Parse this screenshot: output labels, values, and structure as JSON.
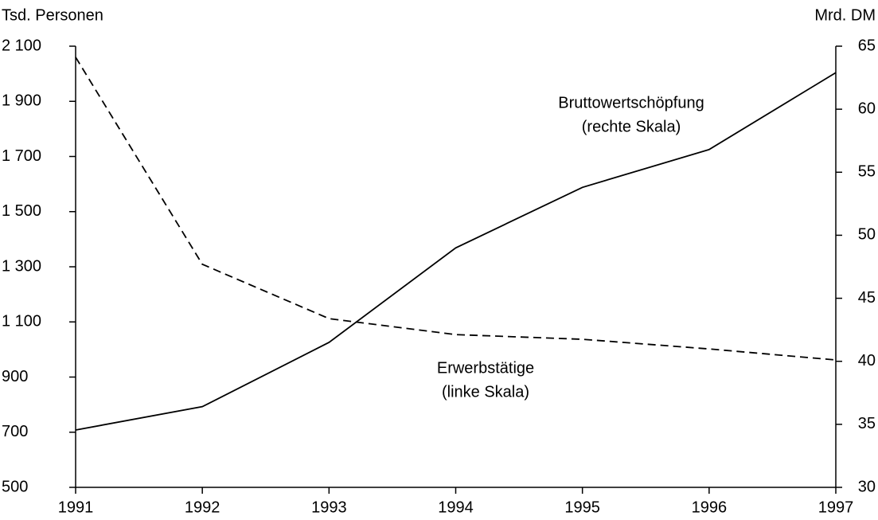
{
  "chart_data": {
    "type": "line",
    "y_label": "Tsd. Personen",
    "y2_label": "Mrd. DM",
    "annotations": [
      "Bruttowertschöpfung",
      "(rechte Skala)",
      "Erwerbstätige",
      "(linke Skala)"
    ],
    "x": [
      1991,
      1992,
      1993,
      1994,
      1995,
      1996,
      1997
    ],
    "xlim": [
      1991,
      1997
    ],
    "xticks": [
      1991,
      1992,
      1993,
      1994,
      1995,
      1996,
      1997
    ],
    "ylim": [
      500,
      2100
    ],
    "yticks": [
      500,
      700,
      900,
      {
        "value": 1100,
        "label": "1 100"
      },
      {
        "value": 1300,
        "label": "1 300"
      },
      {
        "value": 1500,
        "label": "1 500"
      },
      {
        "value": 1700,
        "label": "1 700"
      },
      {
        "value": 1900,
        "label": "1 900"
      },
      {
        "value": 2100,
        "label": "2 100"
      }
    ],
    "y2lim": [
      30,
      65
    ],
    "y2ticks": [
      30,
      35,
      40,
      45,
      50,
      55,
      60,
      65
    ],
    "series": [
      {
        "name": "Erwerbstätige",
        "color": "#000000",
        "line_style": "dashed",
        "values": [
          2060,
          1309,
          1112,
          1054,
          1037,
          1002,
          962
        ]
      },
      {
        "name": "Bruttowertschöpfung",
        "color": "#000000",
        "line_style": "solid",
        "axis": "y2",
        "values": [
          34.55,
          36.4,
          41.5,
          49.0,
          53.8,
          56.8,
          62.9
        ]
      }
    ]
  }
}
